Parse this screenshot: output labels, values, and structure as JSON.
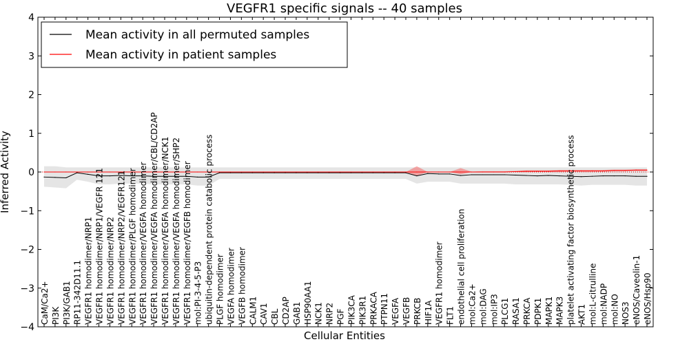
{
  "chart_data": {
    "type": "line",
    "title": "VEGFR1 specific signals -- 40 samples",
    "xlabel": "Cellular Entities",
    "ylabel": "Inferred Activity",
    "ylim": [
      -4,
      4
    ],
    "yticks": [
      -4,
      -3,
      -2,
      -1,
      0,
      1,
      2,
      3,
      4
    ],
    "ytick_labels": [
      "−4",
      "−3",
      "−2",
      "−1",
      "0",
      "1",
      "2",
      "3",
      "4"
    ],
    "grid": false,
    "legend_position": "top-left",
    "categories": [
      "CaM/Ca2+",
      "PI3K",
      "PI3K/GAB1",
      "RP11-342D11.1",
      "VEGFR1 homodimer/NRP1",
      "VEGFR1 homodimer/NRP1/VEGFR 121",
      "VEGFR1 homodimer/NRP2",
      "VEGFR1 homodimer/NRP2/VEGFR121",
      "VEGFR1 homodimer/PLGF homodimer",
      "VEGFR1 homodimer/VEGFA homodimer",
      "VEGFR1 homodimer/VEGFA homodimer/CBL/CD2AP",
      "VEGFR1 homodimer/VEGFA homodimer/NCK1",
      "VEGFR1 homodimer/VEGFA homodimer/SHP2",
      "VEGFR1 homodimer/VEGFB homodimer",
      "mol:PI-3-4-5-P3",
      "ubiquitin-dependent protein catabolic process",
      "PLGF homodimer",
      "VEGFA homodimer",
      "VEGFB homodimer",
      "CALM1",
      "CAV1",
      "CBL",
      "CD2AP",
      "GAB1",
      "HSP90AA1",
      "NCK1",
      "NRP2",
      "PGF",
      "PIK3CA",
      "PIK3R1",
      "PRKACA",
      "PTPN11",
      "VEGFA",
      "VEGFB",
      "PRKCB",
      "HIF1A",
      "VEGFR1 homodimer",
      "FLT1",
      "endothelial cell proliferation",
      "mol:Ca2+",
      "mol:DAG",
      "mol:IP3",
      "PLCG1",
      "RASA1",
      "PRKCA",
      "PDPK1",
      "MAPK1",
      "MAPK3",
      "platelet activating factor biosynthetic process",
      "AKT1",
      "mol:L-citrulline",
      "mol:NADP",
      "mol:NO",
      "NOS3",
      "eNOS/Caveolin-1",
      "eNOS/Hsp90"
    ],
    "series": [
      {
        "name": "Mean activity in all permuted samples",
        "color": "#000000",
        "values": [
          -0.13,
          -0.14,
          -0.15,
          -0.02,
          -0.06,
          -0.1,
          -0.1,
          -0.09,
          -0.1,
          -0.1,
          -0.11,
          -0.11,
          -0.11,
          -0.11,
          -0.13,
          -0.13,
          -0.02,
          -0.02,
          -0.02,
          -0.02,
          -0.02,
          -0.02,
          -0.02,
          -0.02,
          -0.02,
          -0.02,
          -0.02,
          -0.02,
          -0.02,
          -0.02,
          -0.02,
          -0.02,
          -0.02,
          -0.02,
          -0.1,
          -0.04,
          -0.05,
          -0.05,
          -0.09,
          -0.07,
          -0.07,
          -0.07,
          -0.07,
          -0.08,
          -0.09,
          -0.1,
          -0.09,
          -0.1,
          -0.11,
          -0.12,
          -0.11,
          -0.1,
          -0.1,
          -0.1,
          -0.11,
          -0.11
        ],
        "band_upper": [
          0.15,
          0.15,
          0.12,
          0.12,
          0.12,
          0.12,
          0.12,
          0.12,
          0.12,
          0.12,
          0.12,
          0.12,
          0.12,
          0.12,
          0.12,
          0.12,
          0.12,
          0.12,
          0.12,
          0.12,
          0.12,
          0.12,
          0.12,
          0.12,
          0.12,
          0.12,
          0.12,
          0.12,
          0.12,
          0.12,
          0.12,
          0.12,
          0.12,
          0.12,
          0.12,
          0.12,
          0.12,
          0.12,
          0.12,
          0.12,
          0.12,
          0.12,
          0.12,
          0.12,
          0.12,
          0.12,
          0.12,
          0.12,
          0.12,
          0.12,
          0.12,
          0.12,
          0.12,
          0.12,
          0.12,
          0.12
        ],
        "band_lower": [
          -0.38,
          -0.4,
          -0.42,
          -0.2,
          -0.25,
          -0.32,
          -0.32,
          -0.3,
          -0.3,
          -0.3,
          -0.32,
          -0.32,
          -0.32,
          -0.32,
          -0.35,
          -0.35,
          -0.18,
          -0.18,
          -0.18,
          -0.18,
          -0.18,
          -0.18,
          -0.18,
          -0.18,
          -0.18,
          -0.18,
          -0.18,
          -0.18,
          -0.18,
          -0.18,
          -0.18,
          -0.18,
          -0.18,
          -0.18,
          -0.3,
          -0.25,
          -0.25,
          -0.25,
          -0.3,
          -0.3,
          -0.3,
          -0.3,
          -0.3,
          -0.32,
          -0.32,
          -0.32,
          -0.32,
          -0.32,
          -0.33,
          -0.35,
          -0.33,
          -0.33,
          -0.33,
          -0.33,
          -0.35,
          -0.35
        ]
      },
      {
        "name": "Mean activity in patient samples",
        "color": "#ff0000",
        "values": [
          0,
          0,
          0,
          0,
          0,
          0,
          0,
          0,
          0,
          0,
          0,
          0,
          0,
          0,
          0,
          0,
          0,
          0,
          0,
          0,
          0,
          0,
          0,
          0,
          0,
          0,
          0,
          0,
          0,
          0,
          0,
          0,
          0,
          0,
          0,
          0,
          0,
          0,
          0,
          0,
          0,
          0,
          0,
          0.01,
          0.02,
          0.02,
          0.02,
          0.03,
          0.03,
          0.03,
          0.03,
          0.03,
          0.04,
          0.04,
          0.05,
          0.05
        ],
        "band_upper": [
          0,
          0,
          0,
          0,
          0,
          0,
          0,
          0,
          0,
          0,
          0,
          0,
          0,
          0,
          0,
          0,
          0,
          0,
          0,
          0,
          0,
          0,
          0,
          0,
          0,
          0,
          0,
          0,
          0,
          0,
          0,
          0,
          0,
          0,
          0.15,
          0,
          0,
          0,
          0.1,
          0.01,
          0.02,
          0.02,
          0.02,
          0.03,
          0.04,
          0.04,
          0.04,
          0.05,
          0.05,
          0.05,
          0.05,
          0.05,
          0.06,
          0.06,
          0.07,
          0.07
        ],
        "band_lower": [
          0,
          0,
          0,
          0,
          0,
          0,
          0,
          0,
          0,
          0,
          0,
          0,
          0,
          0,
          0,
          0,
          0,
          0,
          0,
          0,
          0,
          0,
          0,
          0,
          0,
          0,
          0,
          0,
          0,
          0,
          0,
          0,
          0,
          0,
          -0.1,
          0,
          0,
          0,
          -0.06,
          0,
          0,
          0,
          0,
          0,
          0,
          0,
          0,
          0,
          0.01,
          0.01,
          0.01,
          0.01,
          0.02,
          0.02,
          0.03,
          0.03
        ]
      }
    ]
  }
}
